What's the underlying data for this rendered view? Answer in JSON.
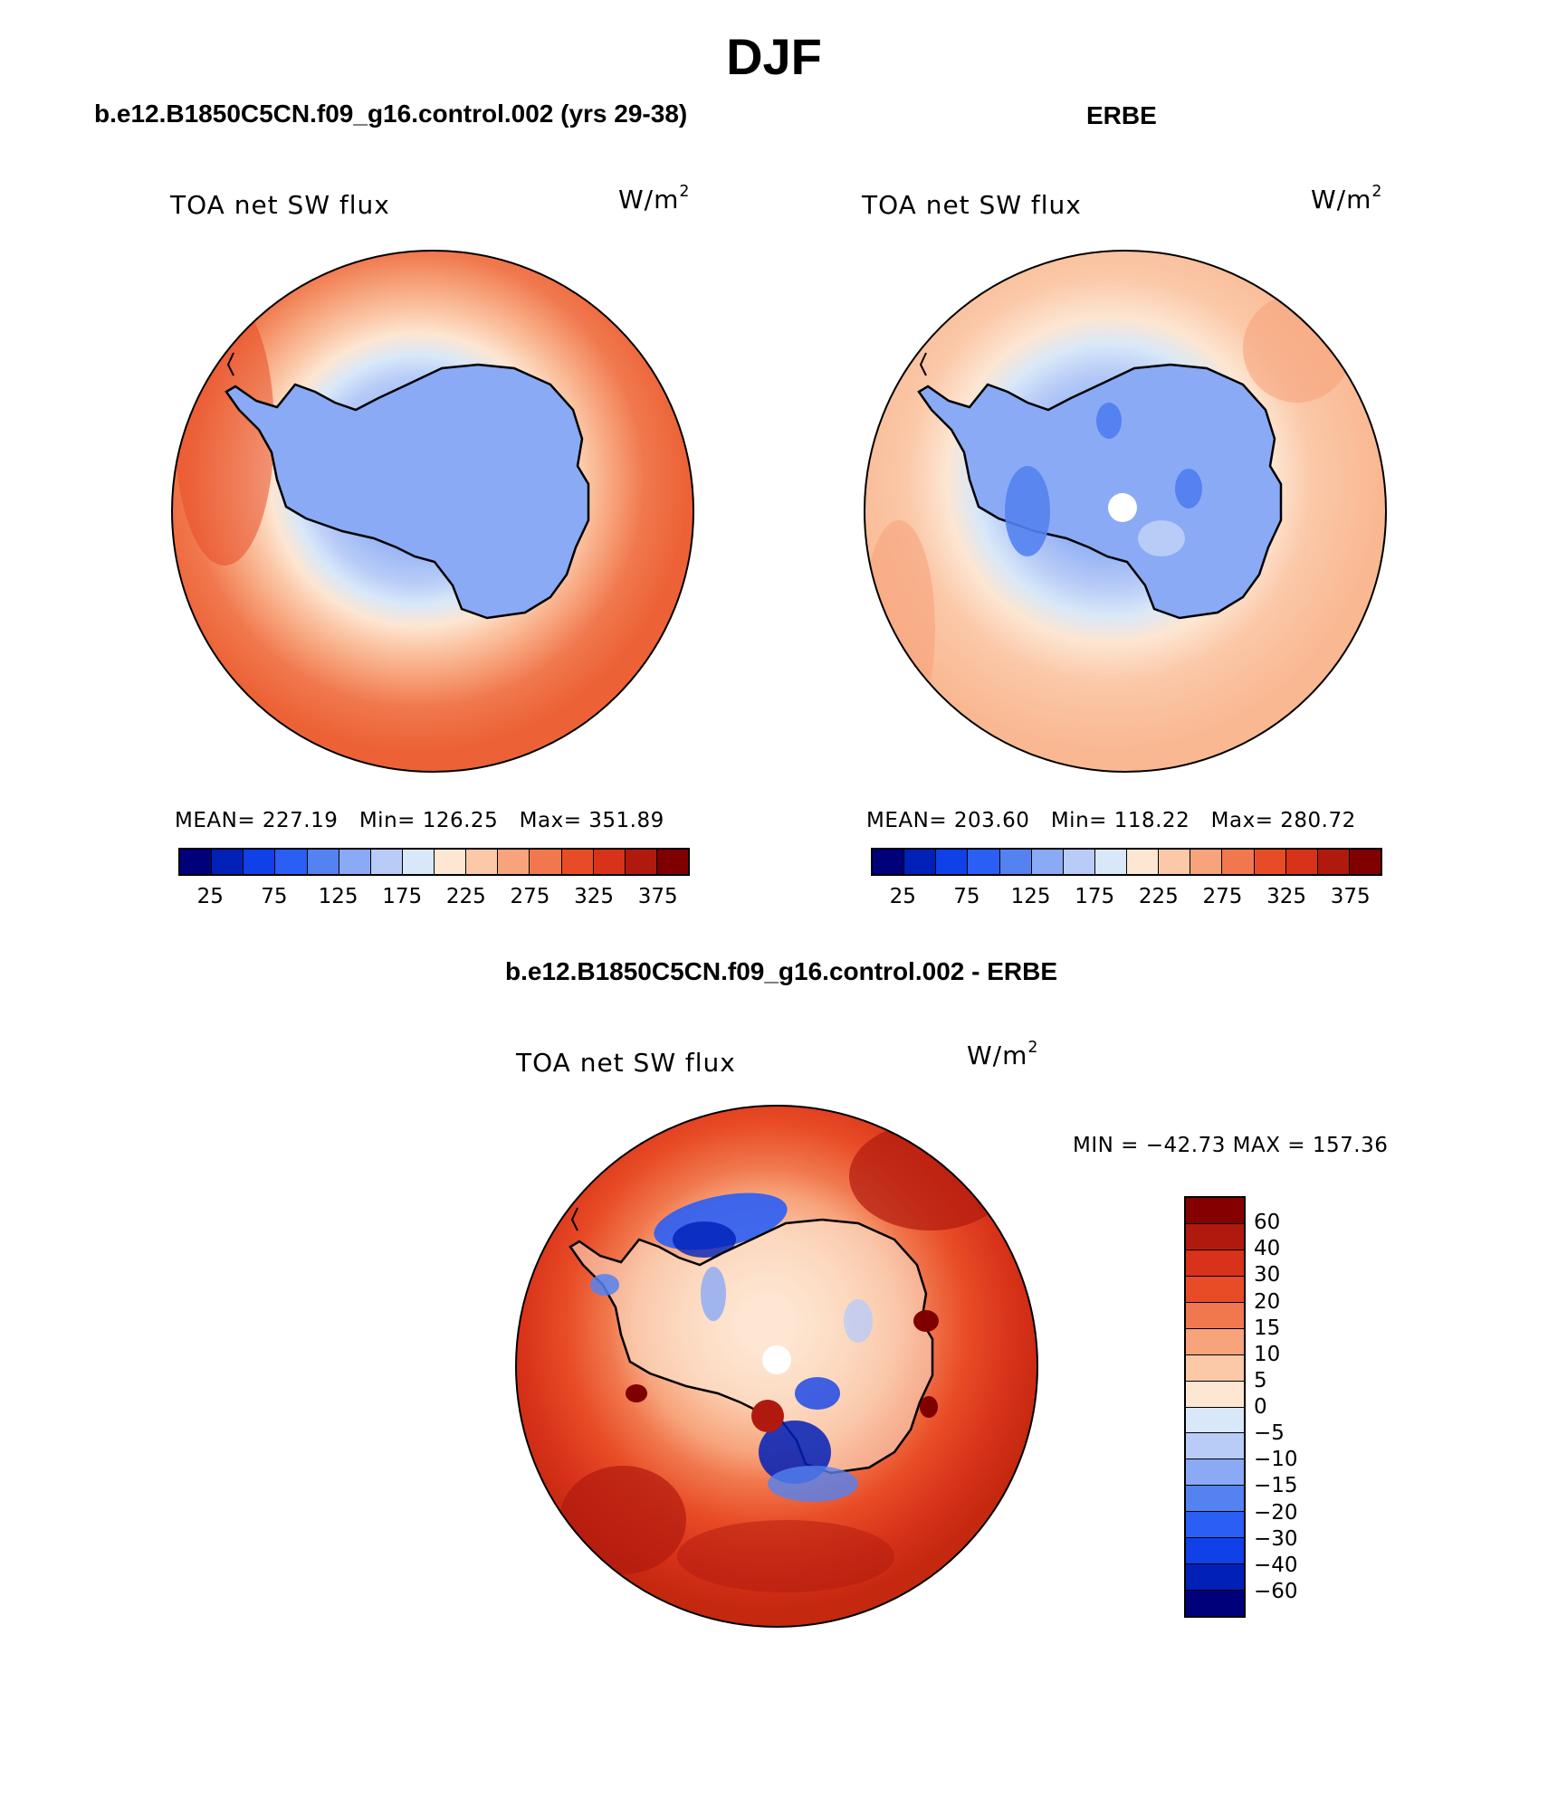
{
  "figure": {
    "title": "DJF"
  },
  "panels": [
    {
      "title": "b.e12.B1850C5CN.f09_g16.control.002 (yrs 29-38)",
      "left_label": "TOA net SW flux",
      "units_base": "W/m",
      "units_exp": "2",
      "stats": {
        "mean": "MEAN= 227.19",
        "min": "Min= 126.25",
        "max": "Max= 351.89"
      },
      "ticks": [
        "25",
        "75",
        "125",
        "175",
        "225",
        "275",
        "325",
        "375"
      ]
    },
    {
      "title": "ERBE",
      "left_label": "TOA net SW flux",
      "units_base": "W/m",
      "units_exp": "2",
      "stats": {
        "mean": "MEAN= 203.60",
        "min": "Min= 118.22",
        "max": "Max= 280.72"
      },
      "ticks": [
        "25",
        "75",
        "125",
        "175",
        "225",
        "275",
        "325",
        "375"
      ]
    },
    {
      "title": "b.e12.B1850C5CN.f09_g16.control.002 - ERBE",
      "left_label": "TOA net SW flux",
      "units_base": "W/m",
      "units_exp": "2",
      "minmax": "MIN = −42.73 MAX = 157.36",
      "ticks": [
        "60",
        "40",
        "30",
        "20",
        "15",
        "10",
        "5",
        "0",
        "−5",
        "−10",
        "−15",
        "−20",
        "−30",
        "−40",
        "−60"
      ]
    }
  ],
  "colors": {
    "abs_scale": [
      "#00007a",
      "#0020b8",
      "#1040e8",
      "#2a5ef5",
      "#5482f0",
      "#8aaaf5",
      "#b8ccf7",
      "#d8e8f8",
      "#fde6d2",
      "#fbc8a8",
      "#f7a47c",
      "#f1784e",
      "#e84c26",
      "#d8321a",
      "#b01a0e",
      "#800000"
    ],
    "diff_scale": [
      "#850000",
      "#b01a0e",
      "#d8321a",
      "#e84c26",
      "#f1784e",
      "#f7a47c",
      "#fbc8a8",
      "#fde6d2",
      "#d8e8f8",
      "#b8ccf7",
      "#8aaaf5",
      "#5482f0",
      "#2a5ef5",
      "#1040e8",
      "#0020b8",
      "#00007a"
    ]
  }
}
